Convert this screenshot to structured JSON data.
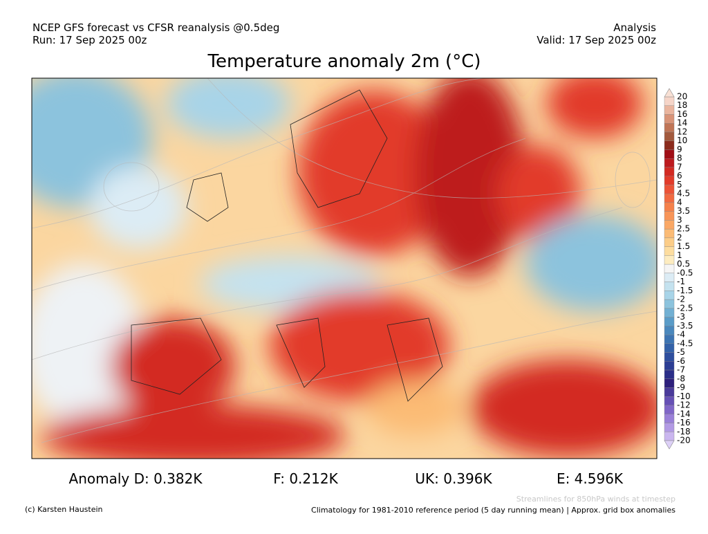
{
  "header": {
    "left": [
      "NCEP GFS forecast vs CFSR reanalysis @0.5deg",
      "Run: 17 Sep 2025 00z"
    ],
    "right": [
      "Analysis",
      "Valid: 17 Sep 2025 00z"
    ],
    "title": "Temperature anomaly 2m (°C)"
  },
  "colorbar": {
    "labels": [
      20,
      18,
      16,
      14,
      12,
      10,
      9,
      8,
      7,
      6,
      5,
      4.5,
      4,
      3.5,
      3,
      2.5,
      2,
      1.5,
      1,
      0.5,
      -0.5,
      -1,
      -1.5,
      -2,
      -2.5,
      -3,
      -3.5,
      -4,
      -4.5,
      -5,
      -6,
      -7,
      -8,
      -9,
      -10,
      -12,
      -14,
      -16,
      -18,
      -20
    ],
    "colors": [
      "#f6d5c8",
      "#eab59e",
      "#d99478",
      "#c07556",
      "#a35a3d",
      "#8b2b1c",
      "#a00e16",
      "#bd1a1e",
      "#d32a22",
      "#e23b2a",
      "#ec5337",
      "#f26a41",
      "#f5814b",
      "#f89558",
      "#faa865",
      "#fbbb75",
      "#fccd88",
      "#fddd9f",
      "#fdecc0",
      "#f5f5f5",
      "#dcecf5",
      "#c4e2ef",
      "#a8d4e8",
      "#8cc3dd",
      "#72b0d3",
      "#5a9cc8",
      "#4a88bd",
      "#3d74b2",
      "#3361a8",
      "#2e4e9e",
      "#2c3e94",
      "#2b2e88",
      "#2e207c",
      "#4a3a9a",
      "#6650b5",
      "#8066c8",
      "#9a80d8",
      "#b29ae4",
      "#cab6ef"
    ],
    "over_color": "#f8e0d4",
    "under_color": "#ddd0f7"
  },
  "stats": [
    "Anomaly D: 0.382K",
    "F: 0.212K",
    "UK: 0.396K",
    "E: 4.596K"
  ],
  "footer": {
    "credit": "(c) Karsten Haustein",
    "streamlines": "Streamlines for 850hPa winds at timestep",
    "climatology": "Climatology for 1981-2010 reference period (5 day running mean) | Approx. grid box anomalies"
  }
}
